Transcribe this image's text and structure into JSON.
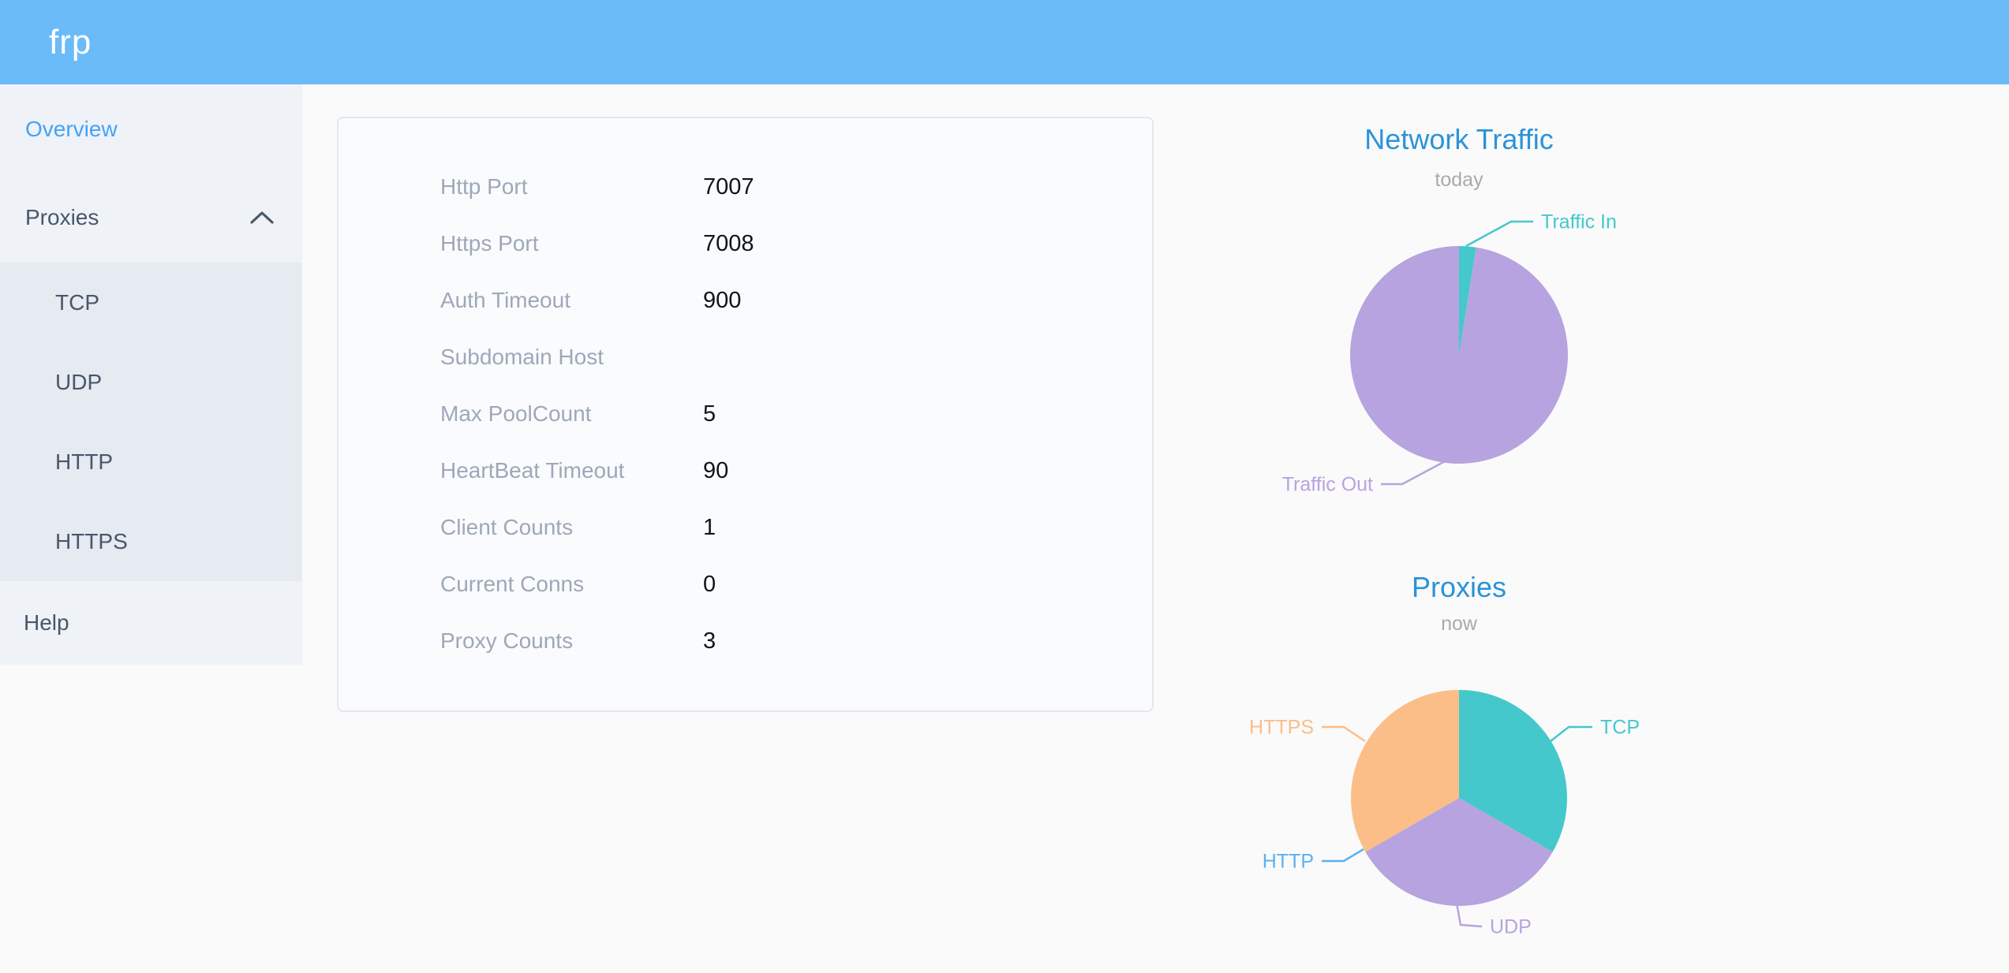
{
  "header": {
    "logo": "frp"
  },
  "sidebar": {
    "items": [
      {
        "label": "Overview",
        "active": true,
        "sub": false
      },
      {
        "label": "Proxies",
        "active": false,
        "sub": false,
        "expanded": true,
        "chevron": "chevron-up-icon"
      },
      {
        "label": "TCP",
        "active": false,
        "sub": true
      },
      {
        "label": "UDP",
        "active": false,
        "sub": true
      },
      {
        "label": "HTTP",
        "active": false,
        "sub": true
      },
      {
        "label": "HTTPS",
        "active": false,
        "sub": true
      },
      {
        "label": "Help",
        "active": false,
        "sub": false
      }
    ]
  },
  "overview_card": {
    "rows": [
      {
        "label": "Http Port",
        "value": "7007"
      },
      {
        "label": "Https Port",
        "value": "7008"
      },
      {
        "label": "Auth Timeout",
        "value": "900"
      },
      {
        "label": "Subdomain Host",
        "value": ""
      },
      {
        "label": "Max PoolCount",
        "value": "5"
      },
      {
        "label": "HeartBeat Timeout",
        "value": "90"
      },
      {
        "label": "Client Counts",
        "value": "1"
      },
      {
        "label": "Current Conns",
        "value": "0"
      },
      {
        "label": "Proxy Counts",
        "value": "3"
      }
    ]
  },
  "chart_data": [
    {
      "type": "pie",
      "title": "Network Traffic",
      "subtitle": "today",
      "legend_position": "none",
      "labels": "outside-with-leader-lines",
      "value_unit": "percent-estimated-from-slice-angles",
      "series": [
        {
          "name": "Traffic In",
          "value": 2.5,
          "color": "#45C8CB"
        },
        {
          "name": "Traffic Out",
          "value": 97.5,
          "color": "#B7A3DF"
        }
      ]
    },
    {
      "type": "pie",
      "title": "Proxies",
      "subtitle": "now",
      "legend_position": "none",
      "labels": "outside-with-leader-lines",
      "value_unit": "proxy-count",
      "series": [
        {
          "name": "TCP",
          "value": 1,
          "color": "#45C8CB"
        },
        {
          "name": "UDP",
          "value": 1,
          "color": "#B7A3DF"
        },
        {
          "name": "HTTP",
          "value": 0,
          "color": "#5AB1EF"
        },
        {
          "name": "HTTPS",
          "value": 1,
          "color": "#FBBE88"
        }
      ]
    }
  ],
  "colors": {
    "header_bg": "#6BBBF9",
    "sidebar_bg": "#EFF2F7",
    "submenu_bg": "#E6EAF1",
    "menu_text": "#48576A",
    "menu_active_text": "#45A2F7",
    "page_bg": "#FAFAFB",
    "card_border": "#E2E7F0",
    "field_label": "#9DA8B9",
    "field_value": "#121417",
    "chart_title": "#2B93D8",
    "chart_subtitle": "#AAAAAA"
  }
}
